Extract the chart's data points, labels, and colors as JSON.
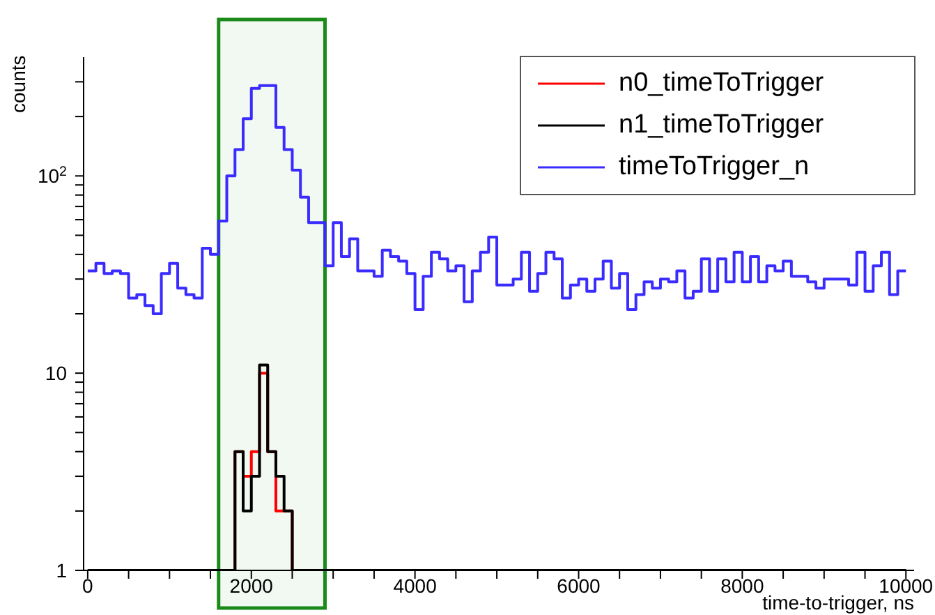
{
  "chart_data": {
    "type": "histogram",
    "xlabel": "time-to-trigger, ns",
    "ylabel": "counts",
    "bins": [
      0,
      100,
      200,
      300,
      400,
      500,
      600,
      700,
      800,
      900,
      1000,
      1100,
      1200,
      1300,
      1400,
      1500,
      1600,
      1700,
      1800,
      1900,
      2000,
      2100,
      2200,
      2300,
      2400,
      2500,
      2600,
      2700,
      2800,
      2900,
      3000,
      3100,
      3200,
      3300,
      3400,
      3500,
      3600,
      3700,
      3800,
      3900,
      4000,
      4100,
      4200,
      4300,
      4400,
      4500,
      4600,
      4700,
      4800,
      4900,
      5000,
      5100,
      5200,
      5300,
      5400,
      5500,
      5600,
      5700,
      5800,
      5900,
      6000,
      6100,
      6200,
      6300,
      6400,
      6500,
      6600,
      6700,
      6800,
      6900,
      7000,
      7100,
      7200,
      7300,
      7400,
      7500,
      7600,
      7700,
      7800,
      7900,
      8000,
      8100,
      8200,
      8300,
      8400,
      8500,
      8600,
      8700,
      8800,
      8900,
      9000,
      9100,
      9200,
      9300,
      9400,
      9500,
      9600,
      9700,
      9800,
      9900,
      10000
    ],
    "series": [
      {
        "name": "n0_timeToTrigger",
        "color": "#ff0000",
        "values": [
          1,
          1,
          1,
          1,
          1,
          1,
          1,
          1,
          1,
          1,
          1,
          1,
          1,
          1,
          1,
          1,
          1,
          1,
          4,
          3,
          4,
          10,
          4,
          2,
          2,
          1,
          1,
          1,
          1,
          1,
          1,
          1,
          1,
          1,
          1,
          1,
          1,
          1,
          1,
          1,
          1,
          1,
          1,
          1,
          1,
          1,
          1,
          1,
          1,
          1,
          1,
          1,
          1,
          1,
          1,
          1,
          1,
          1,
          1,
          1,
          1,
          1,
          1,
          1,
          1,
          1,
          1,
          1,
          1,
          1,
          1,
          1,
          1,
          1,
          1,
          1,
          1,
          1,
          1,
          1,
          1,
          1,
          1,
          1,
          1,
          1,
          1,
          1,
          1,
          1,
          1,
          1,
          1,
          1,
          1,
          1,
          1,
          1,
          1,
          1
        ]
      },
      {
        "name": "n1_timeToTrigger",
        "color": "#000000",
        "values": [
          1,
          1,
          1,
          1,
          1,
          1,
          1,
          1,
          1,
          1,
          1,
          1,
          1,
          1,
          1,
          1,
          1,
          1,
          4,
          2,
          3,
          11,
          4,
          3,
          2,
          1,
          1,
          1,
          1,
          1,
          1,
          1,
          1,
          1,
          1,
          1,
          1,
          1,
          1,
          1,
          1,
          1,
          1,
          1,
          1,
          1,
          1,
          1,
          1,
          1,
          1,
          1,
          1,
          1,
          1,
          1,
          1,
          1,
          1,
          1,
          1,
          1,
          1,
          1,
          1,
          1,
          1,
          1,
          1,
          1,
          1,
          1,
          1,
          1,
          1,
          1,
          1,
          1,
          1,
          1,
          1,
          1,
          1,
          1,
          1,
          1,
          1,
          1,
          1,
          1,
          1,
          1,
          1,
          1,
          1,
          1,
          1,
          1,
          1,
          1
        ]
      },
      {
        "name": "timeToTrigger_n",
        "color": "#3a2bff",
        "values": [
          33,
          36,
          32,
          33,
          32,
          24,
          25,
          22,
          20,
          32,
          36,
          27,
          25,
          24,
          43,
          40,
          59,
          100,
          136,
          195,
          278,
          287,
          287,
          176,
          136,
          107,
          78,
          58,
          58,
          35,
          58,
          39,
          48,
          33,
          33,
          31,
          42,
          39,
          37,
          32,
          21,
          31,
          41,
          38,
          33,
          35,
          23,
          33,
          41,
          49,
          28,
          28,
          30,
          41,
          26,
          32,
          41,
          38,
          24,
          28,
          30,
          26,
          30,
          37,
          27,
          32,
          21,
          25,
          29,
          27,
          30,
          29,
          33,
          24,
          26,
          38,
          26,
          38,
          29,
          41,
          29,
          39,
          29,
          35,
          33,
          37,
          31,
          31,
          29,
          27,
          30,
          30,
          30,
          28,
          41,
          26,
          35,
          41,
          25,
          33
        ]
      }
    ],
    "xlim": [
      -50,
      10100
    ],
    "xticks": [
      0,
      {
        "value": 500,
        "label": null
      },
      {
        "value": 1000,
        "label": null
      },
      {
        "value": 1500,
        "label": null
      },
      2000,
      {
        "value": 2500,
        "label": null
      },
      {
        "value": 3000,
        "label": null
      },
      {
        "value": 3500,
        "label": null
      },
      4000,
      {
        "value": 4500,
        "label": null
      },
      {
        "value": 5000,
        "label": null
      },
      {
        "value": 5500,
        "label": null
      },
      6000,
      {
        "value": 6500,
        "label": null
      },
      {
        "value": 7000,
        "label": null
      },
      {
        "value": 7500,
        "label": null
      },
      8000,
      {
        "value": 8500,
        "label": null
      },
      {
        "value": 9000,
        "label": null
      },
      {
        "value": 9500,
        "label": null
      },
      10000
    ],
    "ylim": [
      1,
      400
    ],
    "log": true,
    "yticks": [
      1,
      {
        "value": 2,
        "label": null
      },
      {
        "value": 3,
        "label": null
      },
      {
        "value": 4,
        "label": null
      },
      {
        "value": 5,
        "label": null
      },
      {
        "value": 6,
        "label": null
      },
      {
        "value": 7,
        "label": null
      },
      {
        "value": 8,
        "label": null
      },
      {
        "value": 9,
        "label": null
      },
      10,
      {
        "value": 20,
        "label": null
      },
      {
        "value": 30,
        "label": null
      },
      {
        "value": 40,
        "label": null
      },
      {
        "value": 50,
        "label": null
      },
      {
        "value": 60,
        "label": null
      },
      {
        "value": 70,
        "label": null
      },
      {
        "value": 80,
        "label": null
      },
      {
        "value": 90,
        "label": null
      },
      {
        "value": 100,
        "label": "10$^{2}$"
      },
      {
        "value": 200,
        "label": null
      },
      {
        "value": 300,
        "label": null
      }
    ],
    "bands": [
      {
        "axis": "x",
        "from": 1600,
        "to": 2900,
        "color": "#1a8a1a"
      }
    ],
    "legend": "top right",
    "grid": false
  }
}
